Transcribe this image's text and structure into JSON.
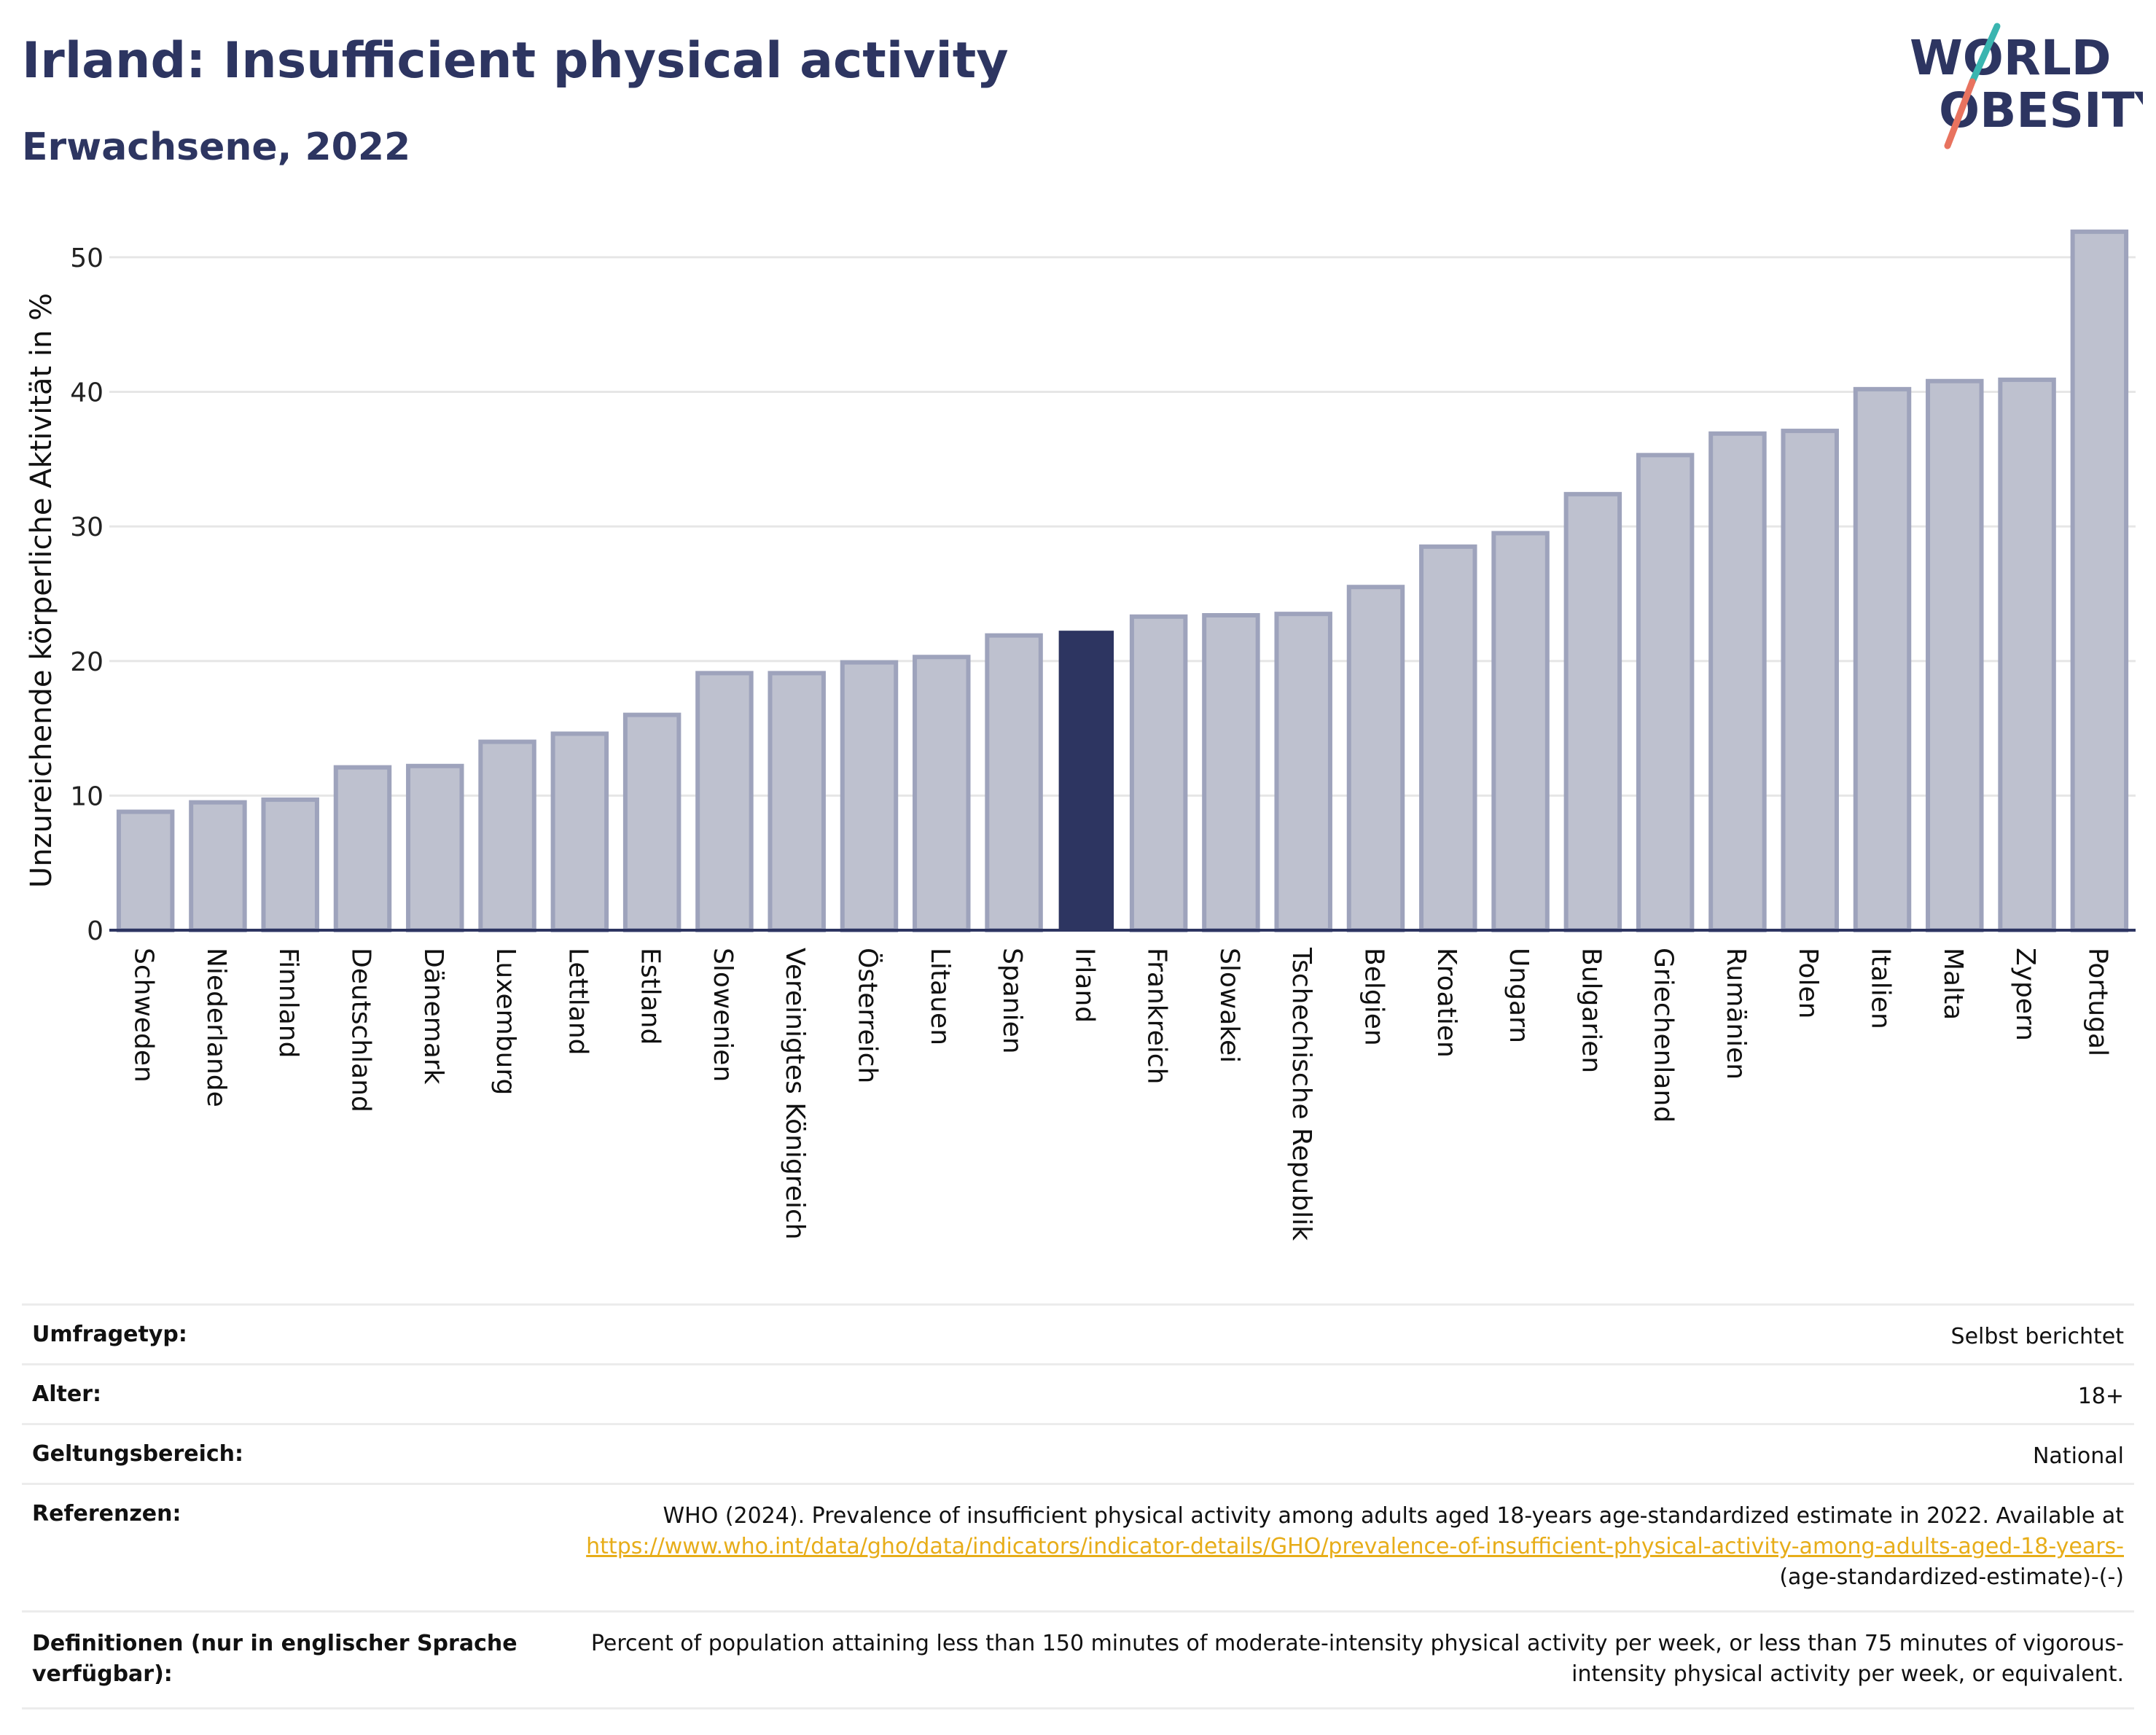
{
  "header": {
    "title": "Irland: Insufficient physical activity",
    "subtitle": "Erwachsene, 2022"
  },
  "logo": {
    "line1": "WORLD",
    "line2": "OBESITY"
  },
  "colors": {
    "highlight_bar": "#2d3561",
    "bar_fill": "#bec1cf",
    "bar_stroke": "#9ea3bc",
    "title": "#2d3561",
    "link": "#e7ad19",
    "logo_teal": "#3ab5b0",
    "logo_coral": "#e8735f"
  },
  "chart_data": {
    "type": "bar",
    "ylabel": "Unzureichende körperliche Aktivität in %",
    "xlabel": "",
    "ylim": [
      0,
      52
    ],
    "yticks": [
      0,
      10,
      20,
      30,
      40,
      50
    ],
    "grid": true,
    "highlight": "Irland",
    "categories": [
      "Schweden",
      "Niederlande",
      "Finnland",
      "Deutschland",
      "Dänemark",
      "Luxemburg",
      "Lettland",
      "Estland",
      "Slowenien",
      "Vereinigtes Königreich",
      "Österreich",
      "Litauen",
      "Spanien",
      "Irland",
      "Frankreich",
      "Slowakei",
      "Tschechische Republik",
      "Belgien",
      "Kroatien",
      "Ungarn",
      "Bulgarien",
      "Griechenland",
      "Rumänien",
      "Polen",
      "Italien",
      "Malta",
      "Zypern",
      "Portugal"
    ],
    "values": [
      8.8,
      9.5,
      9.7,
      12.1,
      12.2,
      14.0,
      14.6,
      16.0,
      19.1,
      19.1,
      19.9,
      20.3,
      21.9,
      22.2,
      23.3,
      23.4,
      23.5,
      25.5,
      28.5,
      29.5,
      32.4,
      35.3,
      36.9,
      37.1,
      40.2,
      40.8,
      40.9,
      51.9
    ]
  },
  "info": {
    "survey_label": "Umfragetyp:",
    "survey_value": "Selbst berichtet",
    "age_label": "Alter:",
    "age_value": "18+",
    "scope_label": "Geltungsbereich:",
    "scope_value": "National",
    "ref_label": "Referenzen:",
    "ref_text": "WHO (2024). Prevalence of insufficient physical activity among adults aged 18-years age-standardized estimate in 2022. Available at",
    "ref_link": "https://www.who.int/data/gho/data/indicators/indicator-details/GHO/prevalence-of-insufficient-physical-activity-among-adults-aged-18-years-",
    "ref_suffix": "(age-standardized-estimate)-(-)",
    "def_label": "Definitionen (nur in englischer Sprache verfügbar):",
    "def_text": "Percent of population attaining less than 150 minutes of moderate-intensity physical activity per week, or less than 75 minutes of vigorous-intensity physical activity per week, or equivalent."
  }
}
